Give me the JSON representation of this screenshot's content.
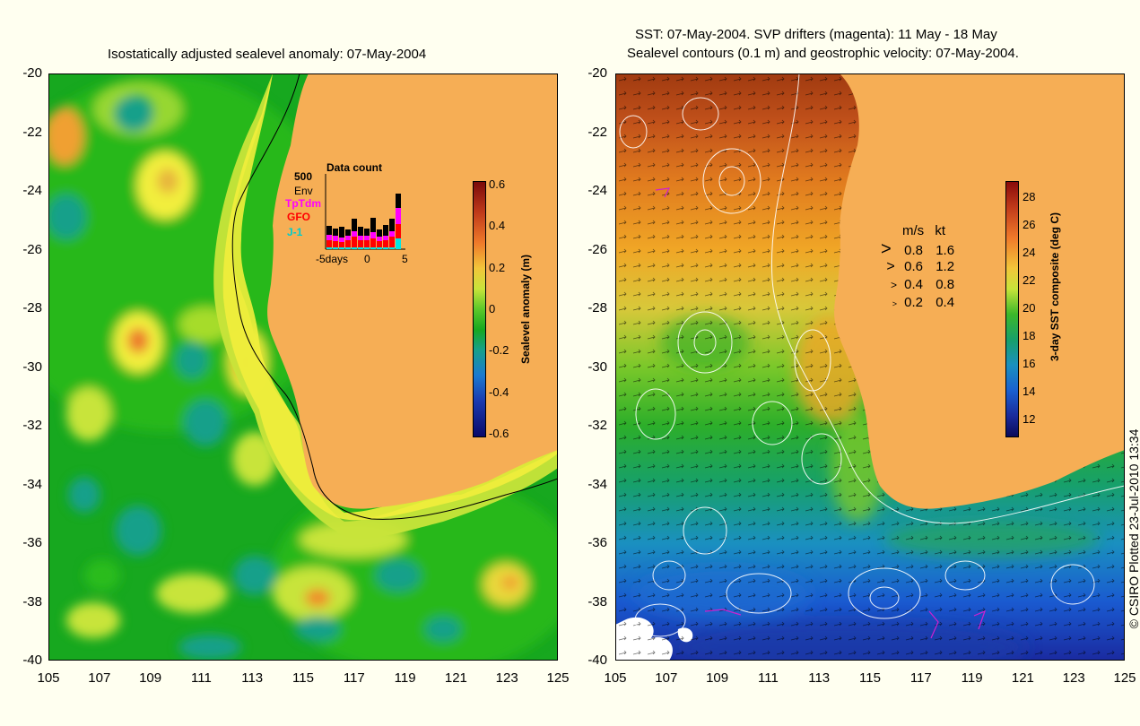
{
  "left_panel": {
    "title": "Isostatically adjusted sealevel anomaly: 07-May-2004",
    "y_ticks": [
      "-20",
      "-22",
      "-24",
      "-26",
      "-28",
      "-30",
      "-32",
      "-34",
      "-36",
      "-38",
      "-40"
    ],
    "x_ticks": [
      "105",
      "107",
      "109",
      "111",
      "113",
      "115",
      "117",
      "119",
      "121",
      "123",
      "125"
    ],
    "colorbar": {
      "label": "Sealevel anomaly (m)",
      "ticks": [
        "0.6",
        "0.4",
        "0.2",
        "0",
        "-0.2",
        "-0.4",
        "-0.6"
      ]
    },
    "inset": {
      "title": "Data count",
      "max_label": "500",
      "series": [
        "Env",
        "TpTdm",
        "GFO",
        "J-1"
      ],
      "series_colors": [
        "#000000",
        "#ff00ff",
        "#ff0000",
        "#00e5e5"
      ],
      "x_labels": [
        "-5days",
        "0",
        "5"
      ]
    }
  },
  "right_panel": {
    "title_line1": "SST: 07-May-2004. SVP drifters (magenta): 11 May - 18 May",
    "title_line2": "Sealevel contours (0.1 m) and geostrophic velocity: 07-May-2004.",
    "y_ticks": [
      "-20",
      "-22",
      "-24",
      "-26",
      "-28",
      "-30",
      "-32",
      "-34",
      "-36",
      "-38",
      "-40"
    ],
    "x_ticks": [
      "105",
      "107",
      "109",
      "111",
      "113",
      "115",
      "117",
      "119",
      "121",
      "123",
      "125"
    ],
    "colorbar": {
      "label": "3-day SST composite (deg C)",
      "ticks": [
        "28",
        "26",
        "24",
        "22",
        "20",
        "18",
        "16",
        "14",
        "12"
      ]
    },
    "velocity_legend": {
      "header_ms": "m/s",
      "header_kt": "kt",
      "rows": [
        {
          "ms": "0.8",
          "kt": "1.6"
        },
        {
          "ms": "0.6",
          "kt": "1.2"
        },
        {
          "ms": "0.4",
          "kt": "0.8"
        },
        {
          "ms": "0.2",
          "kt": "0.4"
        }
      ]
    }
  },
  "credit": "© CSIRO Plotted 23-Jul-2010 13:34"
}
